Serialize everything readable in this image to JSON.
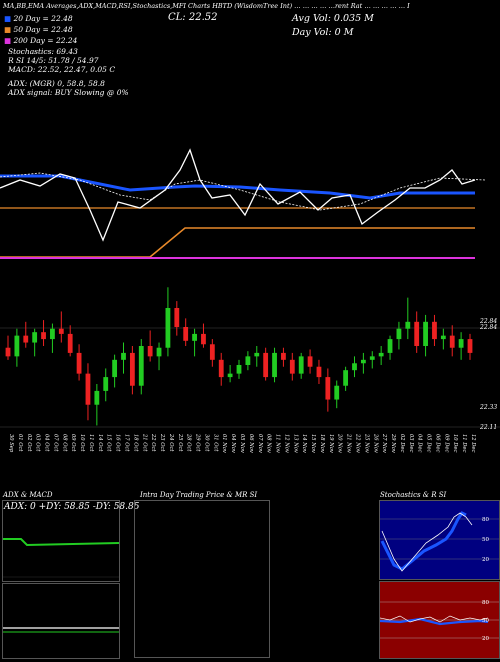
{
  "header": {
    "line": "MA,BB,EMA Averages,ADX,MACD,RSI,Stochastics,MFI Charts HBTD (WisdomTree Int) … … … … …rent Rat … … … … … I",
    "cl": "CL: 22.52",
    "avg_vol": "Avg Vol: 0.035 M",
    "day_vol": "Day Vol: 0 M"
  },
  "legend": {
    "dma20": "20 Day = 22.48",
    "dma50": "50 Day = 22.48",
    "dma200": "200 Day = 22.24",
    "stoch": "Stochastics: 69.43",
    "rsi": "R         SI 14/5: 51.78 / 54.97",
    "macd": "MACD: 22.52, 22.47, 0.05 C",
    "adx": "ADX:                        (MGR) 0, 58.8, 58.8",
    "adx_signal": "ADX  signal:                      BUY Slowing @ 0%"
  },
  "colors": {
    "background": "#000000",
    "up": "#22cc22",
    "down": "#ee2222",
    "ma_blue": "#1a55ff",
    "orange": "#e8892a",
    "magenta": "#dd33dd",
    "stoch_bg": "#000080",
    "mfi_bg": "#8b0000"
  },
  "price_labels": {
    "hi": "22.84",
    "hi2": "22.84",
    "lo": "22.33",
    "lo2": "22.11"
  },
  "dates": [
    "30 Sep",
    "01 Oct",
    "02 Oct",
    "03 Oct",
    "04 Oct",
    "07 Oct",
    "08 Oct",
    "09 Oct",
    "10 Oct",
    "11 Oct",
    "14 Oct",
    "15 Oct",
    "16 Oct",
    "17 Oct",
    "18 Oct",
    "21 Oct",
    "22 Oct",
    "23 Oct",
    "24 Oct",
    "25 Oct",
    "28 Oct",
    "29 Oct",
    "30 Oct",
    "31 Oct",
    "01 Nov",
    "04 Nov",
    "05 Nov",
    "06 Nov",
    "07 Nov",
    "08 Nov",
    "11 Nov",
    "12 Nov",
    "13 Nov",
    "14 Nov",
    "15 Nov",
    "18 Nov",
    "19 Nov",
    "20 Nov",
    "21 Nov",
    "22 Nov",
    "25 Nov",
    "26 Nov",
    "27 Nov",
    "29 Nov",
    "02 Dec",
    "03 Dec",
    "04 Dec",
    "05 Dec",
    "06 Dec",
    "09 Dec",
    "10 Dec",
    "11 Dec",
    "12 Dec"
  ],
  "panels": {
    "adx_title": "ADX  & MACD",
    "adx_values": "ADX: 0   +DY: 58.85   -DY: 58.85",
    "intraday_title": "Intra  Day Trading Price  & MR                      SI",
    "stoch_title": "Stochastics & R                     SI",
    "stoch_ticks": [
      "80",
      "50",
      "20"
    ],
    "mfi_ticks": [
      "80",
      "50",
      "20"
    ]
  },
  "chart_data": {
    "type": "candlestick",
    "ylim": [
      21.9,
      23.0
    ],
    "ohlc": [
      [
        22.55,
        22.62,
        22.48,
        22.5
      ],
      [
        22.5,
        22.66,
        22.44,
        22.62
      ],
      [
        22.62,
        22.7,
        22.55,
        22.58
      ],
      [
        22.58,
        22.66,
        22.5,
        22.64
      ],
      [
        22.64,
        22.71,
        22.56,
        22.6
      ],
      [
        22.6,
        22.69,
        22.52,
        22.66
      ],
      [
        22.66,
        22.76,
        22.58,
        22.63
      ],
      [
        22.63,
        22.68,
        22.5,
        22.52
      ],
      [
        22.52,
        22.57,
        22.36,
        22.4
      ],
      [
        22.4,
        22.46,
        22.13,
        22.22
      ],
      [
        22.22,
        22.34,
        22.1,
        22.3
      ],
      [
        22.3,
        22.43,
        22.24,
        22.38
      ],
      [
        22.38,
        22.51,
        22.32,
        22.48
      ],
      [
        22.48,
        22.58,
        22.4,
        22.52
      ],
      [
        22.52,
        22.56,
        22.28,
        22.33
      ],
      [
        22.33,
        22.6,
        22.28,
        22.56
      ],
      [
        22.56,
        22.65,
        22.47,
        22.5
      ],
      [
        22.5,
        22.58,
        22.42,
        22.55
      ],
      [
        22.55,
        22.9,
        22.5,
        22.78
      ],
      [
        22.78,
        22.82,
        22.62,
        22.67
      ],
      [
        22.67,
        22.72,
        22.56,
        22.59
      ],
      [
        22.59,
        22.66,
        22.5,
        22.63
      ],
      [
        22.63,
        22.69,
        22.55,
        22.57
      ],
      [
        22.57,
        22.6,
        22.44,
        22.48
      ],
      [
        22.48,
        22.52,
        22.33,
        22.38
      ],
      [
        22.38,
        22.45,
        22.35,
        22.4
      ],
      [
        22.4,
        22.48,
        22.37,
        22.45
      ],
      [
        22.45,
        22.53,
        22.42,
        22.5
      ],
      [
        22.5,
        22.56,
        22.44,
        22.52
      ],
      [
        22.52,
        22.55,
        22.36,
        22.38
      ],
      [
        22.38,
        22.55,
        22.35,
        22.52
      ],
      [
        22.52,
        22.55,
        22.44,
        22.48
      ],
      [
        22.48,
        22.52,
        22.36,
        22.4
      ],
      [
        22.4,
        22.52,
        22.37,
        22.5
      ],
      [
        22.5,
        22.54,
        22.4,
        22.44
      ],
      [
        22.44,
        22.48,
        22.34,
        22.38
      ],
      [
        22.38,
        22.43,
        22.18,
        22.25
      ],
      [
        22.25,
        22.36,
        22.2,
        22.33
      ],
      [
        22.33,
        22.44,
        22.3,
        22.42
      ],
      [
        22.42,
        22.5,
        22.38,
        22.46
      ],
      [
        22.46,
        22.52,
        22.4,
        22.48
      ],
      [
        22.48,
        22.53,
        22.43,
        22.5
      ],
      [
        22.5,
        22.56,
        22.45,
        22.52
      ],
      [
        22.52,
        22.62,
        22.48,
        22.6
      ],
      [
        22.6,
        22.7,
        22.54,
        22.66
      ],
      [
        22.66,
        22.84,
        22.6,
        22.7
      ],
      [
        22.7,
        22.76,
        22.52,
        22.56
      ],
      [
        22.56,
        22.74,
        22.5,
        22.7
      ],
      [
        22.7,
        22.74,
        22.56,
        22.6
      ],
      [
        22.6,
        22.66,
        22.54,
        22.62
      ],
      [
        22.62,
        22.68,
        22.5,
        22.55
      ],
      [
        22.55,
        22.64,
        22.48,
        22.6
      ],
      [
        22.6,
        22.63,
        22.48,
        22.52
      ]
    ]
  }
}
